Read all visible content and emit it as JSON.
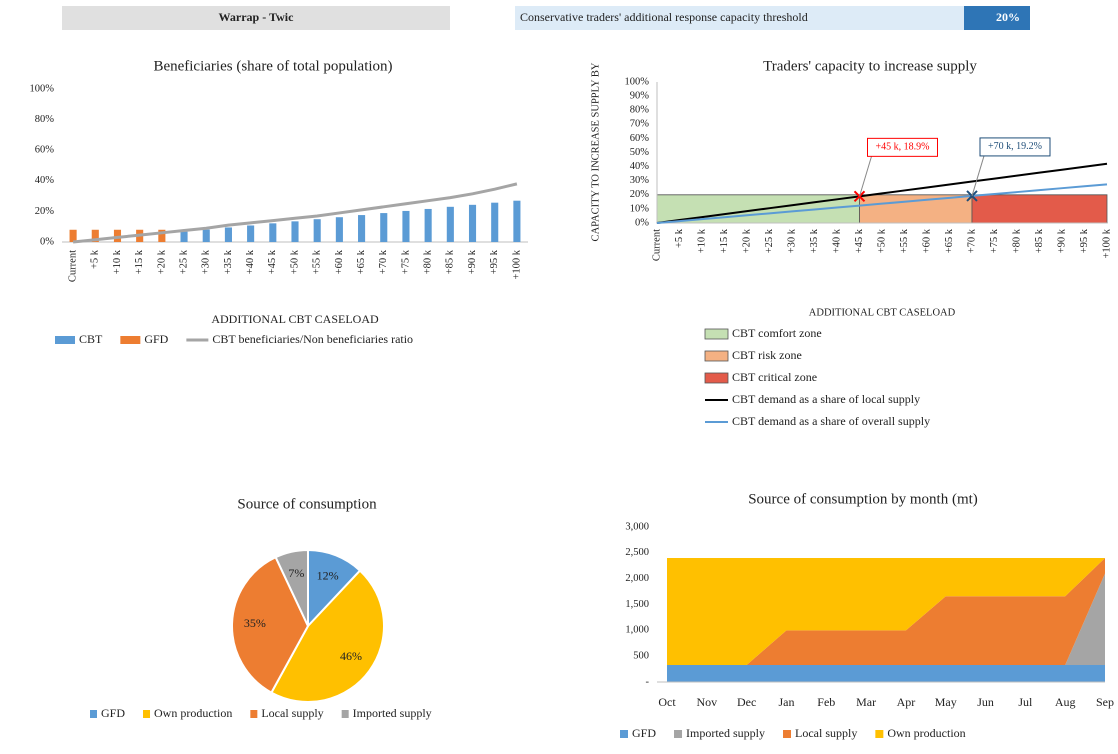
{
  "header": {
    "title": "Warrap - Twic",
    "threshold_label": "Conservative traders' additional response capacity threshold",
    "threshold_value": "20%"
  },
  "chart_data": [
    {
      "type": "bar",
      "title": "Beneficiaries (share of total population)",
      "x_label": "ADDITIONAL CBT CASELOAD",
      "categories": [
        "Current",
        "+5 k",
        "+10 k",
        "+15 k",
        "+20 k",
        "+25 k",
        "+30 k",
        "+35 k",
        "+40 k",
        "+45 k",
        "+50 k",
        "+55 k",
        "+60 k",
        "+65 k",
        "+70 k",
        "+75 k",
        "+80 k",
        "+85 k",
        "+90 k",
        "+95 k",
        "+100 k"
      ],
      "series": [
        {
          "name": "CBT",
          "type": "bar",
          "color": "#5b9bd5",
          "values": [
            null,
            null,
            null,
            null,
            null,
            6.8,
            8.1,
            9.5,
            10.8,
            12.2,
            13.5,
            14.9,
            16.2,
            17.6,
            18.9,
            20.3,
            21.6,
            23,
            24.3,
            25.7,
            27
          ]
        },
        {
          "name": "GFD",
          "type": "bar",
          "color": "#ed7d31",
          "values": [
            8,
            8,
            8,
            8,
            8,
            null,
            null,
            null,
            null,
            null,
            null,
            null,
            null,
            null,
            null,
            null,
            null,
            null,
            null,
            null,
            null
          ]
        },
        {
          "name": "CBT beneficiaries/Non beneficiaries ratio",
          "type": "line",
          "color": "#a5a5a5",
          "values": [
            0,
            1.5,
            3,
            4.5,
            6,
            7.5,
            9,
            11,
            12.5,
            14,
            15.5,
            17,
            19,
            21,
            23,
            25,
            27,
            29,
            31.5,
            34.5,
            38
          ]
        }
      ],
      "ylim": [
        0,
        100
      ],
      "yticks": [
        {
          "value": 0,
          "label": "0%"
        },
        {
          "value": 20,
          "label": "20%"
        },
        {
          "value": 40,
          "label": "40%"
        },
        {
          "value": 60,
          "label": "60%"
        },
        {
          "value": 80,
          "label": "80%"
        },
        {
          "value": 100,
          "label": "100%"
        }
      ],
      "grid": false
    },
    {
      "type": "line",
      "title": "Traders' capacity to increase supply",
      "x_label": "ADDITIONAL CBT CASELOAD",
      "y_label": "CAPACITY TO INCREASE SUPPLY BY",
      "categories": [
        "Current",
        "+5 k",
        "+10 k",
        "+15 k",
        "+20 k",
        "+25 k",
        "+30 k",
        "+35 k",
        "+40 k",
        "+45 k",
        "+50 k",
        "+55 k",
        "+60 k",
        "+65 k",
        "+70 k",
        "+75 k",
        "+80 k",
        "+85 k",
        "+90 k",
        "+95 k",
        "+100 k"
      ],
      "series": [
        {
          "name": "CBT comfort zone",
          "type": "area",
          "color": "#c5e0b3",
          "values": [
            20,
            20,
            20,
            20,
            20,
            20,
            20,
            20,
            20,
            20,
            null,
            null,
            null,
            null,
            null,
            null,
            null,
            null,
            null,
            null,
            null
          ]
        },
        {
          "name": "CBT risk zone",
          "type": "area",
          "color": "#f4b183",
          "values": [
            null,
            null,
            null,
            null,
            null,
            null,
            null,
            null,
            null,
            20,
            20,
            20,
            20,
            20,
            20,
            null,
            null,
            null,
            null,
            null,
            null
          ]
        },
        {
          "name": "CBT critical zone",
          "type": "area",
          "color": "#e35b4a",
          "values": [
            null,
            null,
            null,
            null,
            null,
            null,
            null,
            null,
            null,
            null,
            null,
            null,
            null,
            null,
            20,
            20,
            20,
            20,
            20,
            20,
            20
          ]
        },
        {
          "name": "CBT demand as a share of local supply",
          "type": "line",
          "color": "#000000",
          "values": [
            0,
            2.1,
            4.2,
            6.3,
            8.4,
            10.5,
            12.6,
            14.7,
            16.8,
            18.9,
            21,
            23.1,
            25.2,
            27.3,
            29.4,
            31.5,
            33.6,
            35.7,
            37.8,
            39.9,
            42
          ]
        },
        {
          "name": "CBT demand as a share of overall supply",
          "type": "line",
          "color": "#5b9bd5",
          "values": [
            0,
            1.37,
            2.74,
            4.11,
            5.49,
            6.86,
            8.23,
            9.6,
            10.97,
            12.34,
            13.71,
            15.09,
            16.46,
            17.83,
            19.2,
            20.57,
            21.94,
            23.31,
            24.69,
            26.06,
            27.43
          ]
        }
      ],
      "annotations": [
        {
          "text": "+45 k, 18.9%",
          "x": "+45 k",
          "y": 18.9,
          "color": "#ff0000"
        },
        {
          "text": "+70 k, 19.2%",
          "x": "+70 k",
          "y": 19.2,
          "color": "#1f4e79"
        }
      ],
      "ylim": [
        0,
        100
      ],
      "yticks": [
        {
          "value": 0,
          "label": "0%"
        },
        {
          "value": 10,
          "label": "10%"
        },
        {
          "value": 20,
          "label": "20%"
        },
        {
          "value": 30,
          "label": "30%"
        },
        {
          "value": 40,
          "label": "40%"
        },
        {
          "value": 50,
          "label": "50%"
        },
        {
          "value": 60,
          "label": "60%"
        },
        {
          "value": 70,
          "label": "70%"
        },
        {
          "value": 80,
          "label": "80%"
        },
        {
          "value": 90,
          "label": "90%"
        },
        {
          "value": 100,
          "label": "100%"
        }
      ],
      "grid": false
    },
    {
      "type": "pie",
      "title": "Source of consumption",
      "categories": [
        "GFD",
        "Own production",
        "Local supply",
        "Imported supply"
      ],
      "values": [
        12,
        46,
        35,
        7
      ],
      "value_labels": [
        "12%",
        "46%",
        "35%",
        "7%"
      ],
      "colors": [
        "#5b9bd5",
        "#ffc000",
        "#ed7d31",
        "#a5a5a5"
      ]
    },
    {
      "type": "area",
      "title": "Source of consumption by month (mt)",
      "stacked": true,
      "categories": [
        "Oct",
        "Nov",
        "Dec",
        "Jan",
        "Feb",
        "Mar",
        "Apr",
        "May",
        "Jun",
        "Jul",
        "Aug",
        "Sep"
      ],
      "series": [
        {
          "name": "GFD",
          "color": "#5b9bd5",
          "values": [
            330,
            330,
            330,
            330,
            330,
            330,
            330,
            330,
            330,
            330,
            330,
            330
          ]
        },
        {
          "name": "Imported supply",
          "color": "#a5a5a5",
          "values": [
            0,
            0,
            0,
            0,
            0,
            0,
            0,
            0,
            0,
            0,
            0,
            1770
          ]
        },
        {
          "name": "Local supply",
          "color": "#ed7d31",
          "values": [
            0,
            0,
            0,
            670,
            670,
            670,
            670,
            1330,
            1330,
            1330,
            1330,
            300
          ]
        },
        {
          "name": "Own production",
          "color": "#ffc000",
          "values": [
            2070,
            2070,
            2070,
            1400,
            1400,
            1400,
            1400,
            740,
            740,
            740,
            740,
            0
          ]
        }
      ],
      "ylim": [
        0,
        3000
      ],
      "yticks": [
        {
          "value": 0,
          "label": "-"
        },
        500,
        {
          "value": 1000,
          "label": "1,000"
        },
        {
          "value": 1500,
          "label": "1,500"
        },
        {
          "value": 2000,
          "label": "2,000"
        },
        {
          "value": 2500,
          "label": "2,500"
        },
        {
          "value": 3000,
          "label": "3,000"
        }
      ],
      "grid": false
    }
  ]
}
